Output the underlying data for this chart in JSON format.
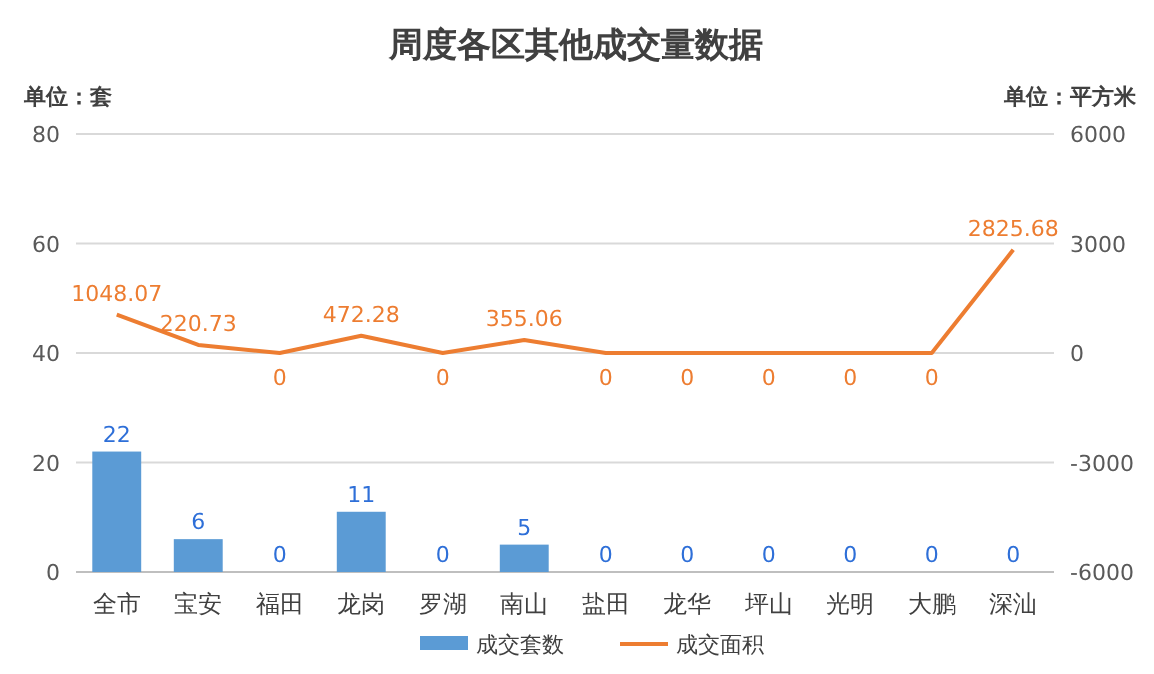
{
  "chart_data": {
    "type": "bar",
    "title": "周度各区其他成交量数据",
    "ylabel": "单位：套",
    "y2label": "单位：平方米",
    "categories": [
      "全市",
      "宝安",
      "福田",
      "龙岗",
      "罗湖",
      "南山",
      "盐田",
      "龙华",
      "坪山",
      "光明",
      "大鹏",
      "深汕"
    ],
    "series": [
      {
        "name": "成交套数",
        "color": "#5b9bd5",
        "values": [
          22,
          6,
          0,
          11,
          0,
          5,
          0,
          0,
          0,
          0,
          0,
          0
        ]
      },
      {
        "name": "成交面积",
        "type": "line",
        "axis": "y2",
        "color": "#ed7d31",
        "values": [
          1048.07,
          220.73,
          0,
          472.28,
          0,
          355.06,
          0,
          0,
          0,
          0,
          0,
          2825.68
        ]
      }
    ],
    "ylim": [
      0,
      80
    ],
    "yticks": [
      0,
      20,
      40,
      60,
      80
    ],
    "y2lim": [
      -6000,
      6000
    ],
    "y2ticks": [
      -6000,
      -3000,
      0,
      3000,
      6000
    ],
    "grid": "y",
    "legend": "bottom",
    "data_labels": true,
    "marker": "none",
    "line_style": "solid"
  }
}
